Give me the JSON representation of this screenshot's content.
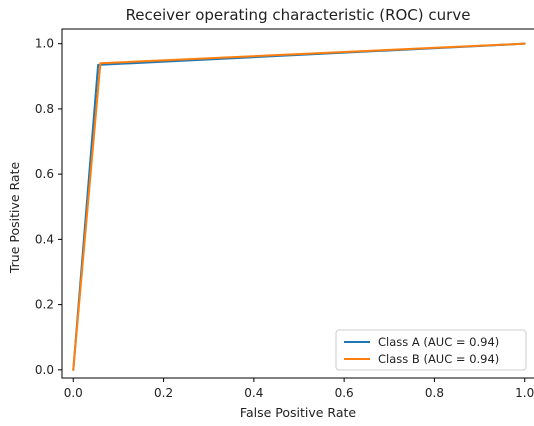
{
  "chart_data": {
    "type": "line",
    "title": "Receiver operating characteristic (ROC) curve",
    "xlabel": "False Positive Rate",
    "ylabel": "True Positive Rate",
    "xlim": [
      -0.025,
      1.025
    ],
    "ylim": [
      -0.025,
      1.045
    ],
    "xticks": [
      0.0,
      0.2,
      0.4,
      0.6,
      0.8,
      1.0
    ],
    "xtick_labels": [
      "0.0",
      "0.2",
      "0.4",
      "0.6",
      "0.8",
      "1.0"
    ],
    "yticks": [
      0.0,
      0.2,
      0.4,
      0.6,
      0.8,
      1.0
    ],
    "ytick_labels": [
      "0.0",
      "0.2",
      "0.4",
      "0.6",
      "0.8",
      "1.0"
    ],
    "grid": false,
    "legend_position": "lower-right",
    "series": [
      {
        "name": "Class A (AUC = 0.94)",
        "color": "#1f77b4",
        "x": [
          0.0,
          0.055,
          1.0
        ],
        "y": [
          0.0,
          0.935,
          1.0
        ]
      },
      {
        "name": "Class B (AUC = 0.94)",
        "color": "#ff7f0e",
        "x": [
          0.0,
          0.06,
          1.0
        ],
        "y": [
          0.0,
          0.94,
          1.0
        ]
      }
    ]
  }
}
